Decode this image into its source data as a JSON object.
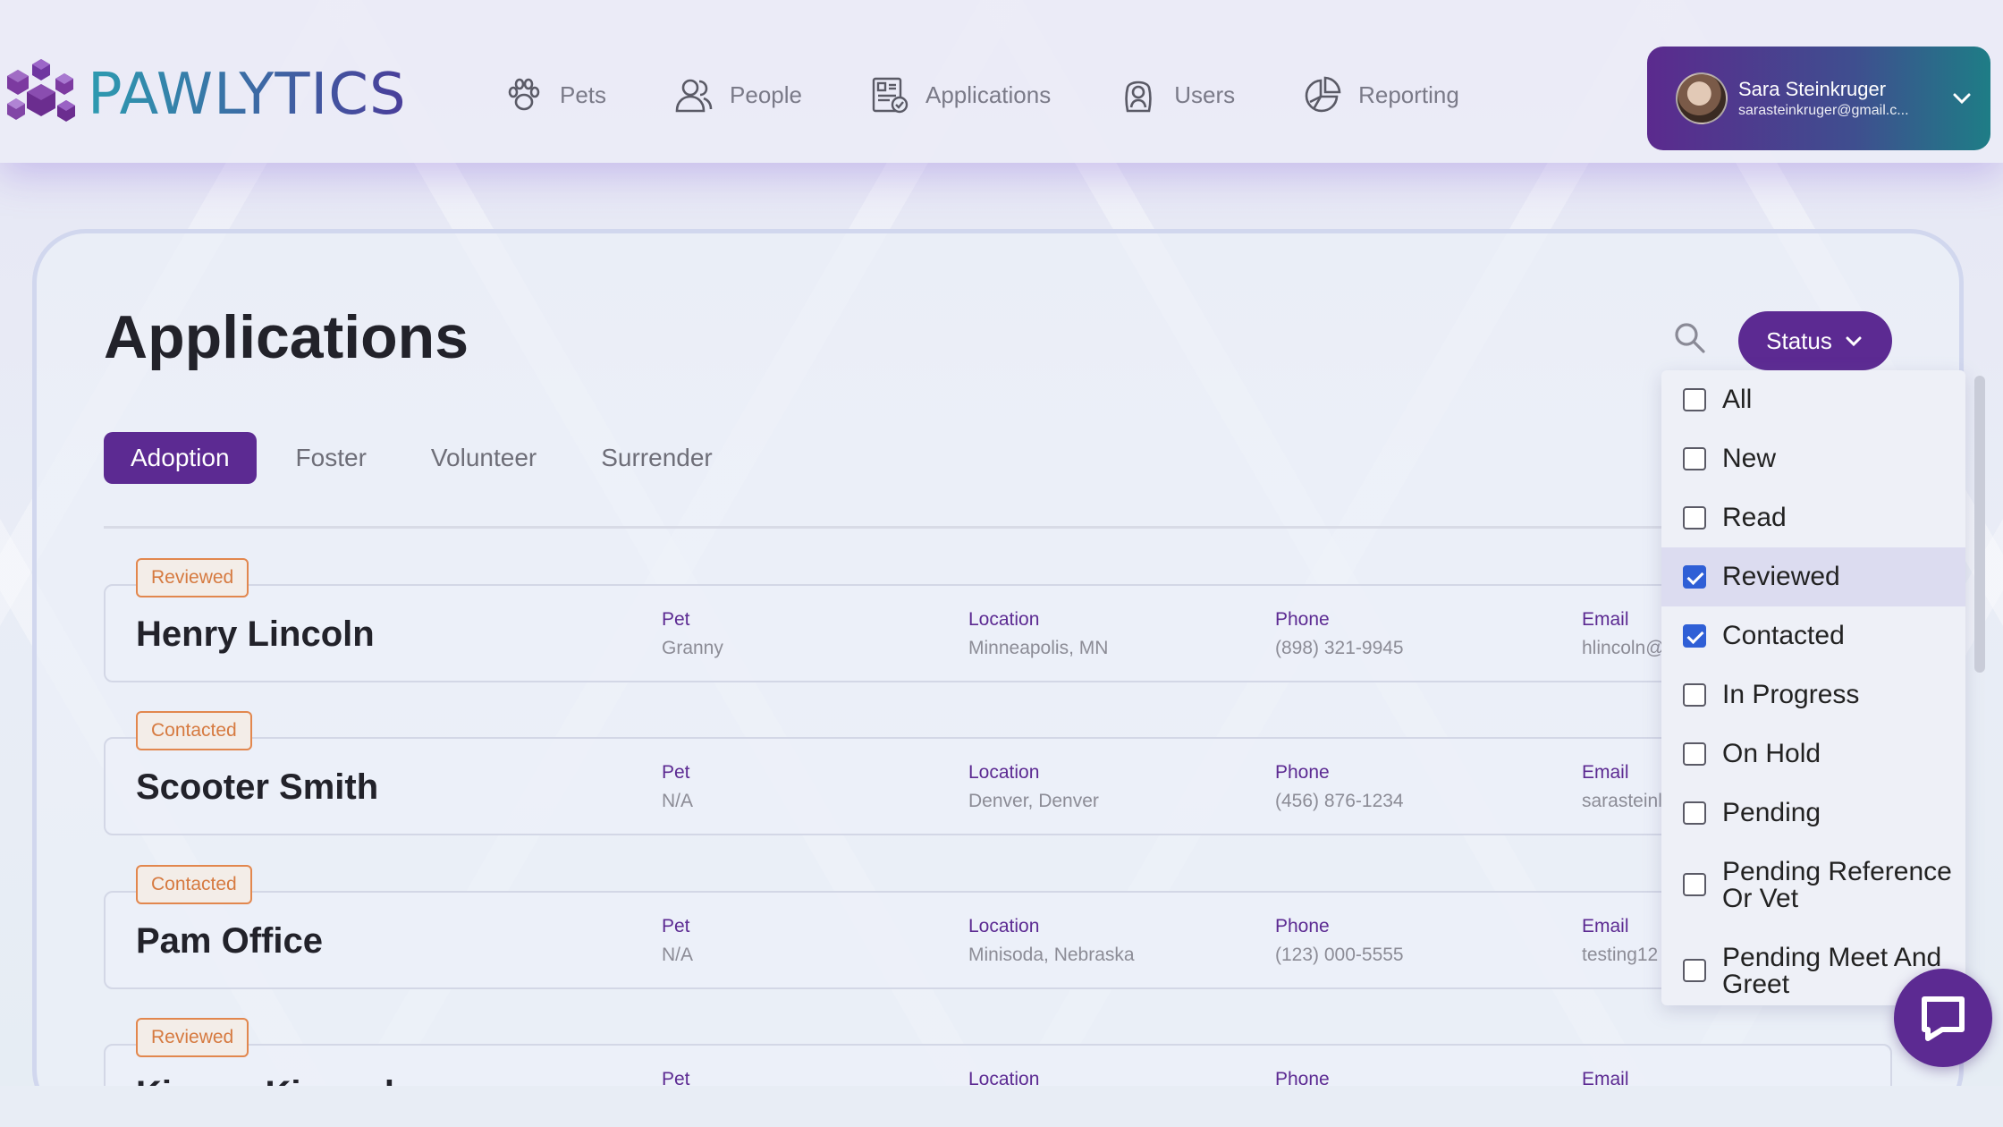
{
  "app": {
    "logo_text": "PAWLYTICS"
  },
  "nav": [
    {
      "label": "Pets",
      "icon": "paw-icon"
    },
    {
      "label": "People",
      "icon": "people-icon"
    },
    {
      "label": "Applications",
      "icon": "applications-icon"
    },
    {
      "label": "Users",
      "icon": "user-badge-icon"
    },
    {
      "label": "Reporting",
      "icon": "pie-chart-icon"
    }
  ],
  "user": {
    "name": "Sara Steinkruger",
    "email": "sarasteinkruger@gmail.c..."
  },
  "page": {
    "title": "Applications",
    "status_button": "Status"
  },
  "tabs": [
    {
      "label": "Adoption",
      "active": true
    },
    {
      "label": "Foster",
      "active": false
    },
    {
      "label": "Volunteer",
      "active": false
    },
    {
      "label": "Surrender",
      "active": false
    }
  ],
  "labels": {
    "pet": "Pet",
    "location": "Location",
    "phone": "Phone",
    "email": "Email"
  },
  "applications": [
    {
      "status": "Reviewed",
      "name": "Henry Lincoln",
      "pet": "Granny",
      "location": "Minneapolis, MN",
      "phone": "(898) 321-9945",
      "email": "hlincoln@"
    },
    {
      "status": "Contacted",
      "name": "Scooter Smith",
      "pet": "N/A",
      "location": "Denver, Denver",
      "phone": "(456) 876-1234",
      "email": "sarasteinl"
    },
    {
      "status": "Contacted",
      "name": "Pam Office",
      "pet": "N/A",
      "location": "Minisoda, Nebraska",
      "phone": "(123) 000-5555",
      "email": "testing12"
    },
    {
      "status": "Reviewed",
      "name": "Kimmy Kimmel",
      "pet": "",
      "location": "",
      "phone": "",
      "email": ""
    }
  ],
  "status_filter": [
    {
      "label": "All",
      "checked": false
    },
    {
      "label": "New",
      "checked": false
    },
    {
      "label": "Read",
      "checked": false
    },
    {
      "label": "Reviewed",
      "checked": true
    },
    {
      "label": "Contacted",
      "checked": true
    },
    {
      "label": "In Progress",
      "checked": false
    },
    {
      "label": "On Hold",
      "checked": false
    },
    {
      "label": "Pending",
      "checked": false
    },
    {
      "label": "Pending Reference Or Vet",
      "checked": false
    },
    {
      "label": "Pending Meet And Greet",
      "checked": false
    }
  ],
  "colors": {
    "brand_purple": "#5c2a92",
    "badge_orange": "#d67a40",
    "checkbox_blue": "#2f5fd6"
  }
}
